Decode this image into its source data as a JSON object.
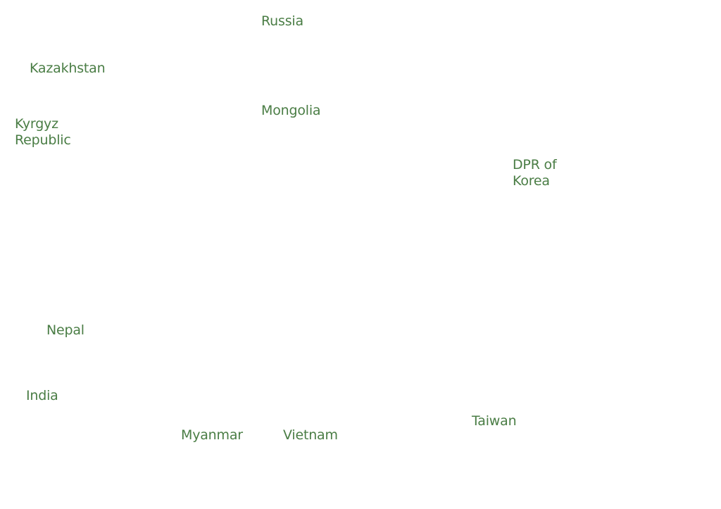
{
  "map": {
    "labels": [
      [
        "Russia"
      ],
      [
        "Kazakhstan"
      ],
      [
        "Mongolia"
      ],
      [
        "Kyrgyz",
        "Republic"
      ],
      [
        "DPR of",
        "Korea"
      ],
      [
        "Nepal"
      ],
      [
        "India"
      ],
      [
        "Taiwan"
      ],
      [
        "Myanmar"
      ],
      [
        "Vietnam"
      ]
    ]
  }
}
